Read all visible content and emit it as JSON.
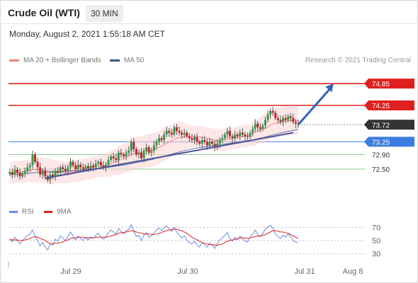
{
  "header": {
    "title": "Crude Oil (WTI)",
    "timeframe": "30 MIN",
    "timestamp": "Monday, August 2, 2021 1:55:18 AM CET"
  },
  "legend": {
    "ma20": "MA 20 + Bollinger Bands",
    "ma50": "MA 50",
    "credit": "Research © 2021 Trading Central"
  },
  "rsi_legend": {
    "rsi": "RSI",
    "ma9": "9MA"
  },
  "colors": {
    "ma20": "#f08080",
    "ma50": "#34568b",
    "band": "#fbd3d3",
    "up": "#2e9e44",
    "down": "#c2242a",
    "resistance": "#e02020",
    "support": "#3d7ee0",
    "target": "#4caf50",
    "trend": "#4a4f9c",
    "forecast_arrow": "#3563b3",
    "current": "#333333",
    "rsi": "#6a8fe0",
    "rsi_ma": "#e02020"
  },
  "chart_data": {
    "type": "candlestick",
    "x_labels": [
      "Jul 29",
      "Jul 30",
      "Jul 31",
      "Aug 8"
    ],
    "y_range": [
      71.8,
      75.3
    ],
    "price_levels": [
      {
        "value": 74.85,
        "label": "74.85",
        "role": "resistance"
      },
      {
        "value": 74.25,
        "label": "74.25",
        "role": "resistance"
      },
      {
        "value": 73.72,
        "label": "73.72",
        "role": "current"
      },
      {
        "value": 73.25,
        "label": "73.25",
        "role": "support"
      },
      {
        "value": 72.9,
        "label": "72.90",
        "role": "target"
      },
      {
        "value": 72.5,
        "label": "72.50",
        "role": "target"
      }
    ],
    "closes": [
      72.42,
      72.35,
      72.48,
      72.4,
      72.3,
      72.38,
      72.45,
      72.55,
      72.6,
      72.9,
      72.7,
      72.55,
      72.35,
      72.45,
      72.3,
      72.2,
      72.35,
      72.3,
      72.45,
      72.4,
      72.55,
      72.5,
      72.45,
      72.55,
      72.7,
      72.6,
      72.5,
      72.62,
      72.55,
      72.5,
      72.58,
      72.52,
      72.6,
      72.55,
      72.65,
      72.7,
      72.6,
      72.55,
      72.62,
      72.75,
      72.85,
      72.8,
      72.75,
      72.95,
      72.9,
      72.85,
      72.95,
      73.0,
      73.25,
      73.05,
      72.9,
      72.95,
      72.8,
      73.0,
      73.1,
      72.95,
      73.0,
      73.15,
      73.25,
      73.35,
      73.3,
      73.45,
      73.55,
      73.5,
      73.45,
      73.65,
      73.55,
      73.5,
      73.45,
      73.5,
      73.4,
      73.35,
      73.3,
      73.38,
      73.25,
      73.2,
      73.3,
      73.25,
      73.15,
      73.25,
      73.2,
      73.1,
      73.2,
      73.3,
      73.35,
      73.45,
      73.55,
      73.4,
      73.35,
      73.45,
      73.4,
      73.5,
      73.45,
      73.4,
      73.38,
      73.5,
      73.6,
      73.75,
      73.65,
      73.6,
      73.7,
      73.85,
      74.0,
      74.1,
      74.05,
      73.9,
      73.85,
      73.8,
      73.9,
      73.85,
      73.95,
      73.9,
      73.8,
      73.75,
      73.72
    ],
    "ma20": [
      72.4,
      72.4,
      72.41,
      72.42,
      72.42,
      72.43,
      72.44,
      72.45,
      72.46,
      72.48,
      72.49,
      72.49,
      72.48,
      72.47,
      72.46,
      72.44,
      72.43,
      72.42,
      72.42,
      72.41,
      72.41,
      72.41,
      72.4,
      72.41,
      72.43,
      72.44,
      72.45,
      72.46,
      72.47,
      72.48,
      72.5,
      72.51,
      72.52,
      72.54,
      72.56,
      72.57,
      72.58,
      72.59,
      72.6,
      72.62,
      72.65,
      72.68,
      72.7,
      72.73,
      72.76,
      72.79,
      72.82,
      72.85,
      72.9,
      72.92,
      72.93,
      72.95,
      72.96,
      72.98,
      73.0,
      73.01,
      73.02,
      73.04,
      73.07,
      73.1,
      73.13,
      73.17,
      73.21,
      73.25,
      73.28,
      73.32,
      73.35,
      73.37,
      73.38,
      73.39,
      73.4,
      73.4,
      73.4,
      73.4,
      73.39,
      73.38,
      73.37,
      73.36,
      73.34,
      73.33,
      73.32,
      73.3,
      73.29,
      73.29,
      73.3,
      73.31,
      73.32,
      73.33,
      73.34,
      73.35,
      73.36,
      73.38,
      73.4,
      73.41,
      73.42,
      73.44,
      73.47,
      73.51,
      73.54,
      73.57,
      73.6,
      73.63,
      73.67,
      73.71,
      73.74,
      73.76,
      73.78,
      73.79,
      73.81,
      73.82,
      73.83,
      73.84,
      73.84,
      73.84,
      73.83
    ],
    "ma50": [
      72.35,
      72.35,
      72.36,
      72.36,
      72.37,
      72.37,
      72.38,
      72.38,
      72.39,
      72.4,
      72.4,
      72.41,
      72.41,
      72.42,
      72.42,
      72.42,
      72.42,
      72.43,
      72.43,
      72.43,
      72.44,
      72.44,
      72.44,
      72.45,
      72.45,
      72.46,
      72.46,
      72.47,
      72.47,
      72.48,
      72.48,
      72.49,
      72.5,
      72.5,
      72.51,
      72.52,
      72.52,
      72.53,
      72.54,
      72.55,
      72.56,
      72.57,
      72.58,
      72.59,
      72.6,
      72.61,
      72.62,
      72.63,
      72.65,
      72.66,
      72.68,
      72.69,
      72.7,
      72.72,
      72.73,
      72.75,
      72.76,
      72.78,
      72.8,
      72.81,
      72.83,
      72.85,
      72.87,
      72.89,
      72.91,
      72.93,
      72.95,
      72.97,
      72.99,
      73.01,
      73.02,
      73.04,
      73.05,
      73.07,
      73.08,
      73.09,
      73.1,
      73.11,
      73.12,
      73.13,
      73.14,
      73.15,
      73.16,
      73.17,
      73.18,
      73.19,
      73.2,
      73.21,
      73.22,
      73.23,
      73.24,
      73.25,
      73.26,
      73.27,
      73.28,
      73.29,
      73.3,
      73.32,
      73.33,
      73.35,
      73.36,
      73.38,
      73.4,
      73.42,
      73.44,
      73.46,
      73.47,
      73.49,
      73.51,
      73.52,
      73.54,
      73.55,
      73.56,
      73.58,
      73.59
    ],
    "bollinger_width": [
      0.3,
      0.3,
      0.3,
      0.3,
      0.3,
      0.3,
      0.3,
      0.3,
      0.3,
      0.35,
      0.35,
      0.35,
      0.35,
      0.35,
      0.35,
      0.35,
      0.35,
      0.35,
      0.3,
      0.3,
      0.3,
      0.3,
      0.3,
      0.3,
      0.3,
      0.3,
      0.3,
      0.3,
      0.3,
      0.3,
      0.3,
      0.3,
      0.3,
      0.3,
      0.3,
      0.3,
      0.3,
      0.3,
      0.3,
      0.35,
      0.35,
      0.35,
      0.35,
      0.4,
      0.4,
      0.4,
      0.4,
      0.45,
      0.45,
      0.45,
      0.45,
      0.45,
      0.45,
      0.45,
      0.45,
      0.45,
      0.45,
      0.45,
      0.45,
      0.45,
      0.45,
      0.45,
      0.45,
      0.45,
      0.45,
      0.45,
      0.45,
      0.45,
      0.4,
      0.4,
      0.35,
      0.3,
      0.3,
      0.3,
      0.3,
      0.3,
      0.3,
      0.3,
      0.3,
      0.3,
      0.3,
      0.3,
      0.3,
      0.3,
      0.3,
      0.3,
      0.3,
      0.3,
      0.3,
      0.3,
      0.3,
      0.3,
      0.3,
      0.3,
      0.3,
      0.3,
      0.35,
      0.35,
      0.35,
      0.35,
      0.4,
      0.4,
      0.4,
      0.4,
      0.4,
      0.4,
      0.4,
      0.4,
      0.4,
      0.4,
      0.4,
      0.4,
      0.4,
      0.4,
      0.4
    ],
    "trendline": {
      "from": {
        "index": 14,
        "price": 72.25
      },
      "to": {
        "index": 112,
        "price": 73.5
      }
    },
    "forecast_arrow": {
      "from": {
        "index": 114,
        "price": 73.72
      },
      "to": {
        "index": 128,
        "price": 74.85
      }
    },
    "rsi": {
      "levels": [
        70,
        50,
        30
      ],
      "range": [
        20,
        80
      ],
      "values": [
        52,
        48,
        55,
        50,
        45,
        50,
        54,
        58,
        60,
        66,
        56,
        50,
        42,
        47,
        40,
        36,
        45,
        43,
        52,
        49,
        57,
        54,
        50,
        56,
        63,
        57,
        51,
        57,
        53,
        50,
        55,
        51,
        56,
        53,
        58,
        61,
        55,
        52,
        56,
        62,
        66,
        63,
        60,
        68,
        64,
        60,
        65,
        67,
        74,
        64,
        56,
        58,
        50,
        58,
        62,
        55,
        57,
        62,
        66,
        69,
        65,
        70,
        72,
        68,
        64,
        70,
        63,
        58,
        54,
        57,
        50,
        47,
        45,
        49,
        43,
        40,
        47,
        44,
        40,
        46,
        43,
        38,
        45,
        51,
        54,
        58,
        62,
        53,
        49,
        55,
        51,
        57,
        53,
        49,
        48,
        55,
        60,
        66,
        59,
        56,
        61,
        67,
        71,
        73,
        69,
        60,
        56,
        53,
        58,
        55,
        60,
        56,
        50,
        48,
        47
      ],
      "ma9": [
        52,
        51,
        51,
        51,
        50,
        50,
        51,
        52,
        53,
        55,
        56,
        55,
        53,
        52,
        50,
        47,
        46,
        45,
        46,
        46,
        47,
        48,
        50,
        51,
        53,
        54,
        54,
        55,
        55,
        55,
        54,
        54,
        54,
        54,
        55,
        55,
        55,
        55,
        55,
        56,
        57,
        58,
        59,
        61,
        62,
        62,
        63,
        64,
        65,
        64,
        63,
        62,
        61,
        60,
        60,
        60,
        59,
        59,
        60,
        61,
        62,
        64,
        65,
        66,
        67,
        67,
        67,
        66,
        65,
        63,
        61,
        58,
        55,
        53,
        51,
        49,
        47,
        46,
        45,
        44,
        44,
        43,
        43,
        44,
        45,
        47,
        49,
        50,
        51,
        52,
        53,
        54,
        54,
        54,
        53,
        54,
        55,
        56,
        57,
        57,
        58,
        59,
        61,
        63,
        65,
        65,
        64,
        63,
        63,
        62,
        61,
        59,
        57,
        55,
        53
      ]
    }
  }
}
